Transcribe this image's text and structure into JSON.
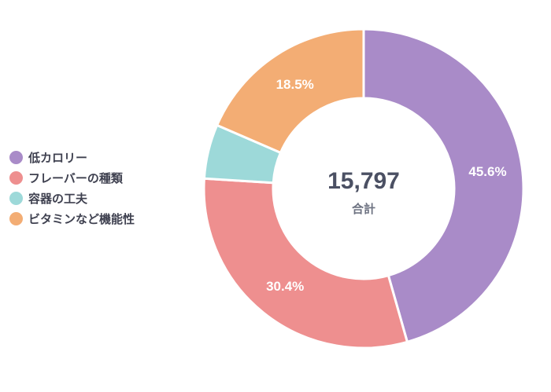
{
  "chart_data": {
    "type": "pie",
    "donut": true,
    "categories": [
      "低カロリー",
      "フレーバーの種類",
      "容器の工夫",
      "ビタミンなど機能性"
    ],
    "values": [
      45.6,
      30.4,
      5.5,
      18.5
    ],
    "value_labels": [
      "45.6%",
      "30.4%",
      "",
      "18.5%"
    ],
    "colors": [
      "#a98bc8",
      "#ee8f8f",
      "#9dd9d9",
      "#f3ad74"
    ],
    "start_angle_deg": 0,
    "direction": "clockwise",
    "legend_position": "left",
    "center_value": "15,797",
    "center_label": "合計"
  }
}
